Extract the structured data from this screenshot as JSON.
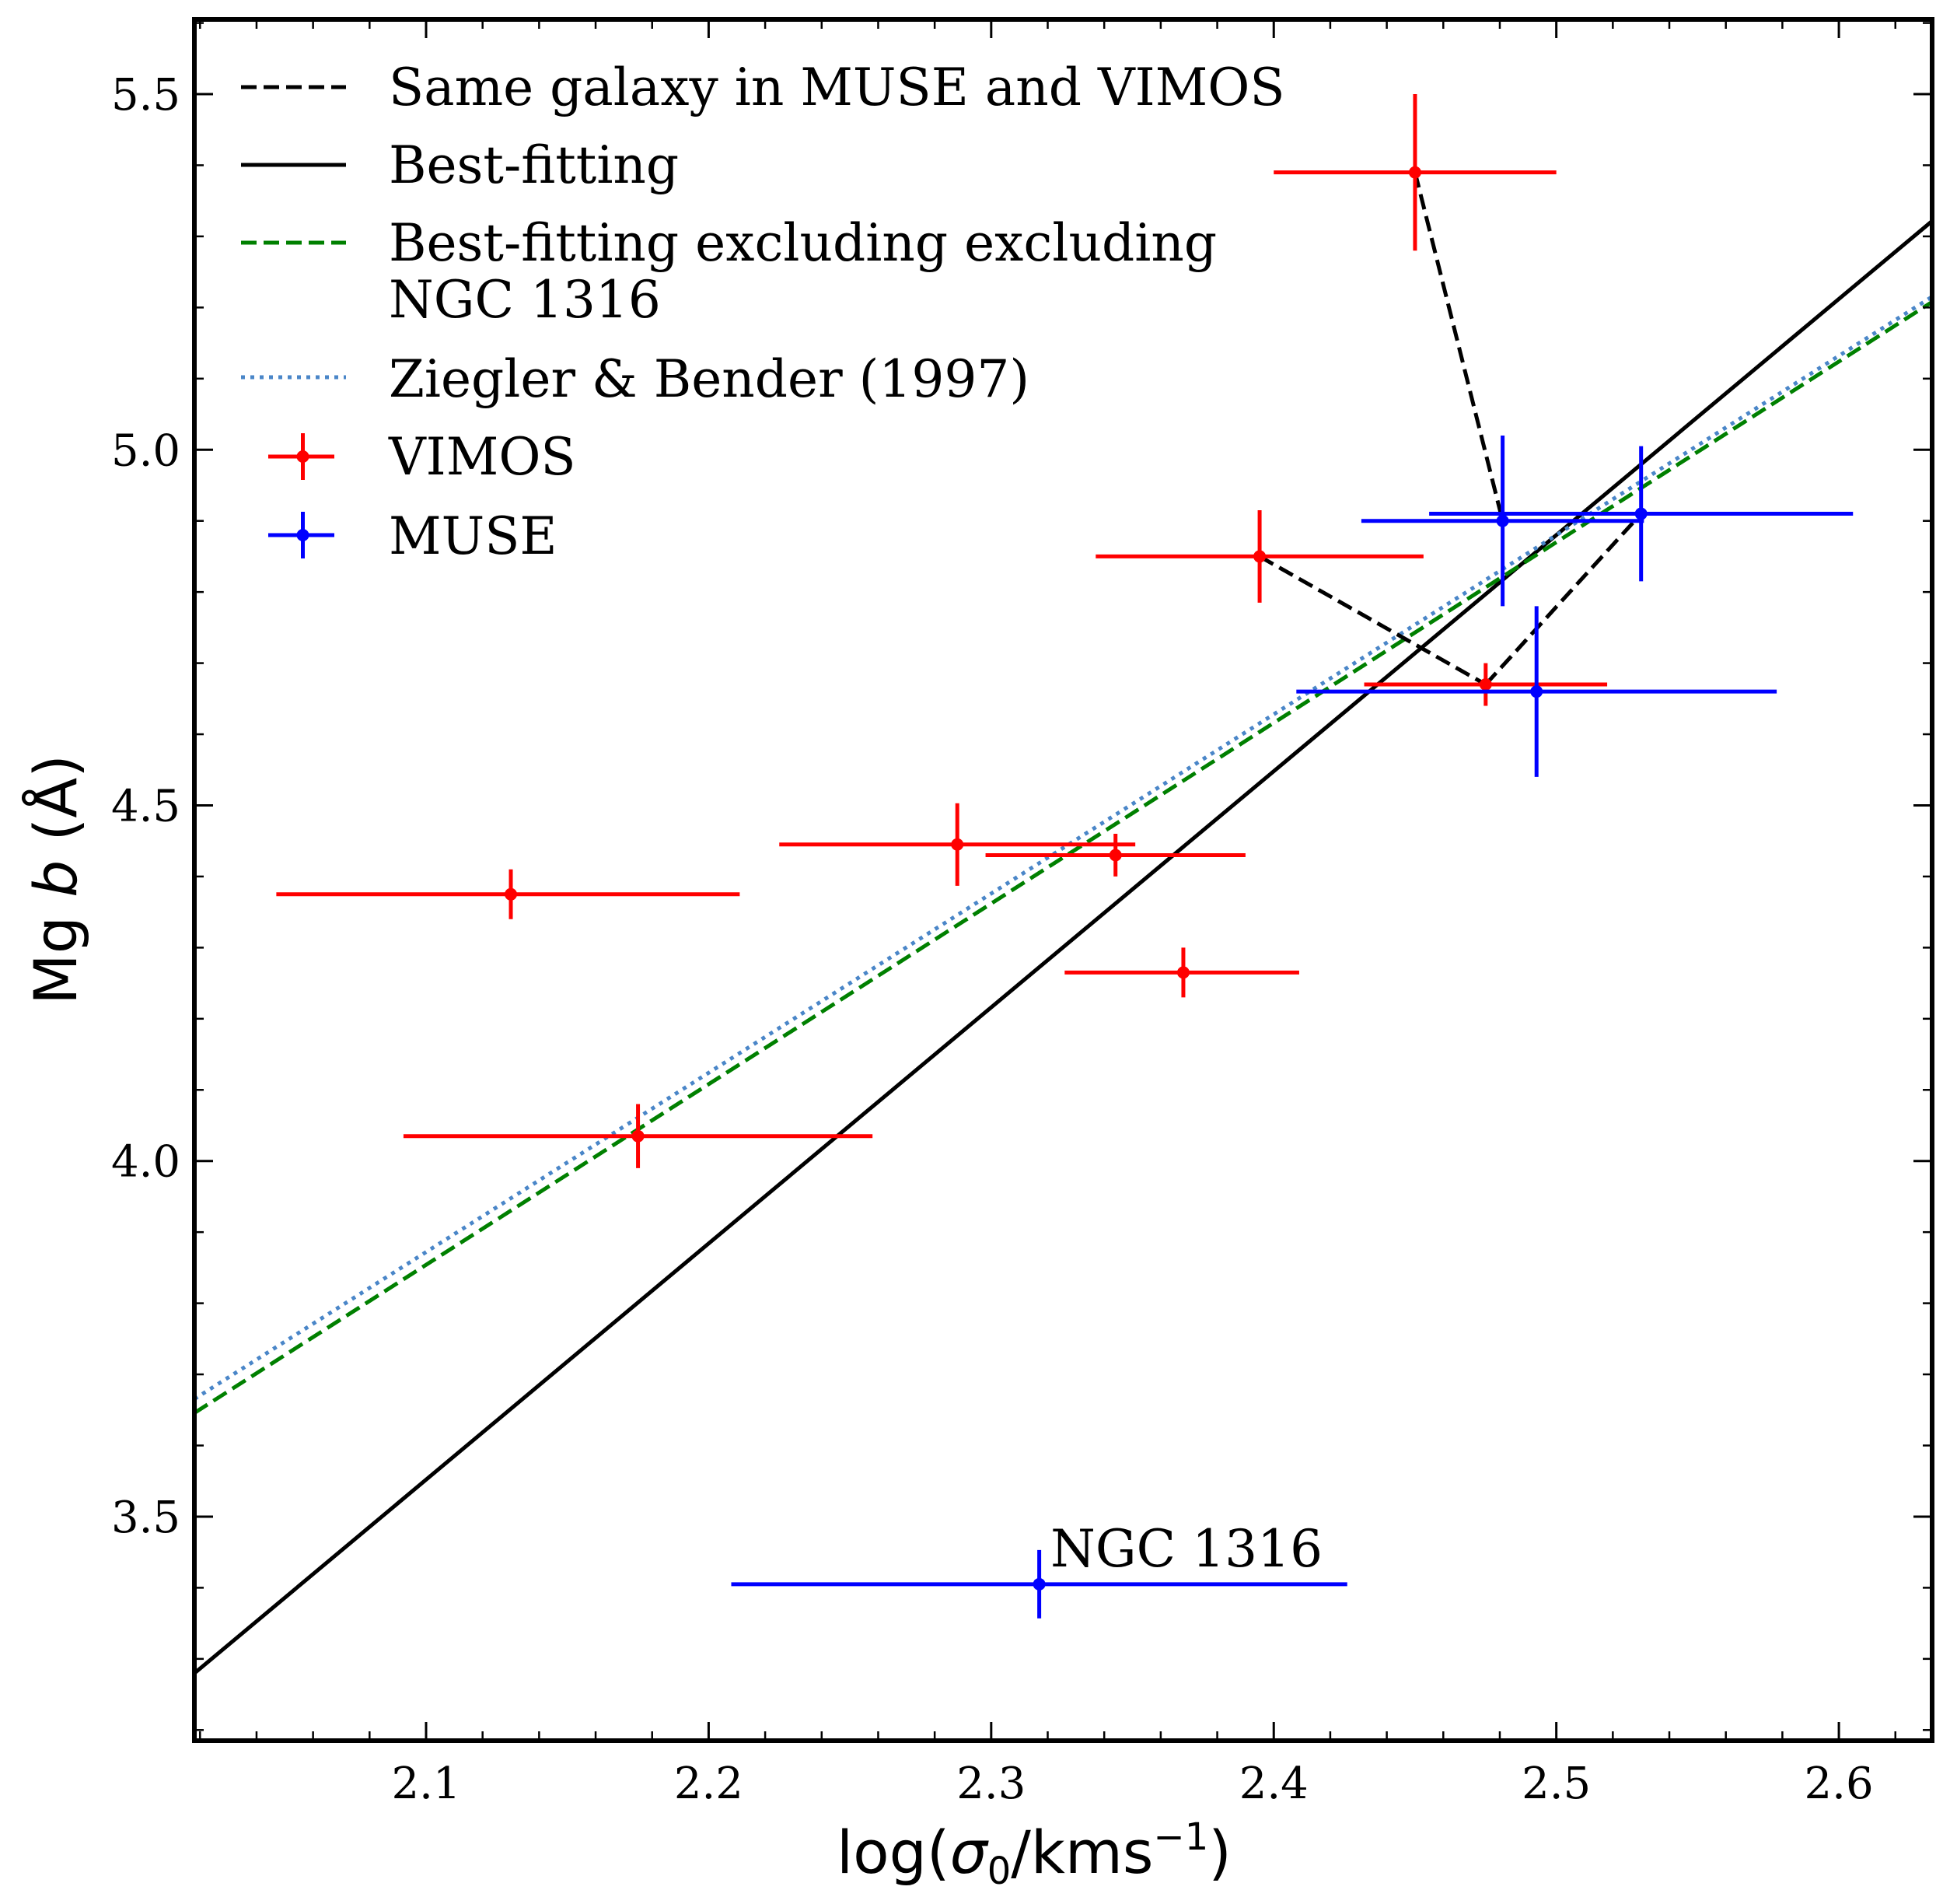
{
  "chart_data": {
    "type": "scatter",
    "xlabel": {
      "prefix": "log(",
      "sigma": "σ",
      "sub": "0",
      "mid": "/kms",
      "sup": "−1",
      "suffix": ")"
    },
    "ylabel": {
      "prefix": "Mg ",
      "italic": "b",
      "suffix": " (Å)"
    },
    "xlim": [
      2.018,
      2.633
    ],
    "ylim": [
      3.185,
      5.605
    ],
    "xticks": [
      2.1,
      2.2,
      2.3,
      2.4,
      2.5,
      2.6
    ],
    "xtick_labels": [
      "2.1",
      "2.2",
      "2.3",
      "2.4",
      "2.5",
      "2.6"
    ],
    "yticks": [
      3.5,
      4.0,
      4.5,
      5.0,
      5.5
    ],
    "ytick_labels": [
      "3.5",
      "4.0",
      "4.5",
      "5.0",
      "5.5"
    ],
    "grid": false,
    "legend_position": "upper-left",
    "legend": [
      {
        "label": "Same galaxy in MUSE and VIMOS",
        "style": "dashed-black"
      },
      {
        "label": "Best-fitting",
        "style": "solid-black"
      },
      {
        "label": "Best-fitting excluding excluding",
        "label2": "NGC 1316",
        "style": "dashed-green"
      },
      {
        "label": "Ziegler & Bender (1997)",
        "style": "dotted-blue"
      },
      {
        "label": "VIMOS",
        "style": "errorbar-red"
      },
      {
        "label": "MUSE",
        "style": "errorbar-blue"
      }
    ],
    "lines": [
      {
        "name": "Best-fitting",
        "slope": 3.32,
        "intercept": -3.42,
        "color": "#000000",
        "dash": "none"
      },
      {
        "name": "Best-fitting excluding excluding NGC 1316",
        "slope": 2.54,
        "intercept": -1.48,
        "color": "#008000",
        "dash": "dashed"
      },
      {
        "name": "Ziegler & Bender (1997)",
        "slope": 2.52,
        "intercept": -1.42,
        "color": "#4a86c8",
        "dash": "dotted"
      }
    ],
    "series": [
      {
        "name": "VIMOS",
        "color": "#ff0000",
        "points": [
          {
            "x": 2.13,
            "y": 4.375,
            "xerr": [
              0.083,
              0.081
            ],
            "yerr": [
              0.035,
              0.035
            ]
          },
          {
            "x": 2.175,
            "y": 4.035,
            "xerr": [
              0.083,
              0.083
            ],
            "yerr": [
              0.045,
              0.045
            ]
          },
          {
            "x": 2.288,
            "y": 4.445,
            "xerr": [
              0.063,
              0.063
            ],
            "yerr": [
              0.058,
              0.058
            ]
          },
          {
            "x": 2.344,
            "y": 4.43,
            "xerr": [
              0.046,
              0.046
            ],
            "yerr": [
              0.03,
              0.03
            ]
          },
          {
            "x": 2.368,
            "y": 4.265,
            "xerr": [
              0.042,
              0.041
            ],
            "yerr": [
              0.035,
              0.035
            ]
          },
          {
            "x": 2.395,
            "y": 4.85,
            "xerr": [
              0.058,
              0.058
            ],
            "yerr": [
              0.065,
              0.065
            ]
          },
          {
            "x": 2.45,
            "y": 5.39,
            "xerr": [
              0.05,
              0.05
            ],
            "yerr": [
              0.11,
              0.11
            ]
          },
          {
            "x": 2.475,
            "y": 4.67,
            "xerr": [
              0.043,
              0.043
            ],
            "yerr": [
              0.03,
              0.03
            ]
          }
        ]
      },
      {
        "name": "MUSE",
        "color": "#0000ff",
        "points": [
          {
            "x": 2.317,
            "y": 3.405,
            "xerr": [
              0.109,
              0.109
            ],
            "yerr": [
              0.048,
              0.048
            ]
          },
          {
            "x": 2.481,
            "y": 4.9,
            "xerr": [
              0.05,
              0.05
            ],
            "yerr": [
              0.12,
              0.12
            ]
          },
          {
            "x": 2.493,
            "y": 4.66,
            "xerr": [
              0.085,
              0.085
            ],
            "yerr": [
              0.12,
              0.12
            ]
          },
          {
            "x": 2.53,
            "y": 4.91,
            "xerr": [
              0.075,
              0.075
            ],
            "yerr": [
              0.095,
              0.095
            ]
          }
        ]
      }
    ],
    "connections": [
      {
        "from": [
          2.45,
          5.39
        ],
        "to": [
          2.481,
          4.9
        ]
      },
      {
        "from": [
          2.395,
          4.85
        ],
        "to": [
          2.475,
          4.67
        ]
      },
      {
        "from": [
          2.475,
          4.67
        ],
        "to": [
          2.53,
          4.91
        ]
      }
    ],
    "annotations": [
      {
        "text": "NGC 1316",
        "x": 2.321,
        "y": 3.43
      }
    ]
  }
}
